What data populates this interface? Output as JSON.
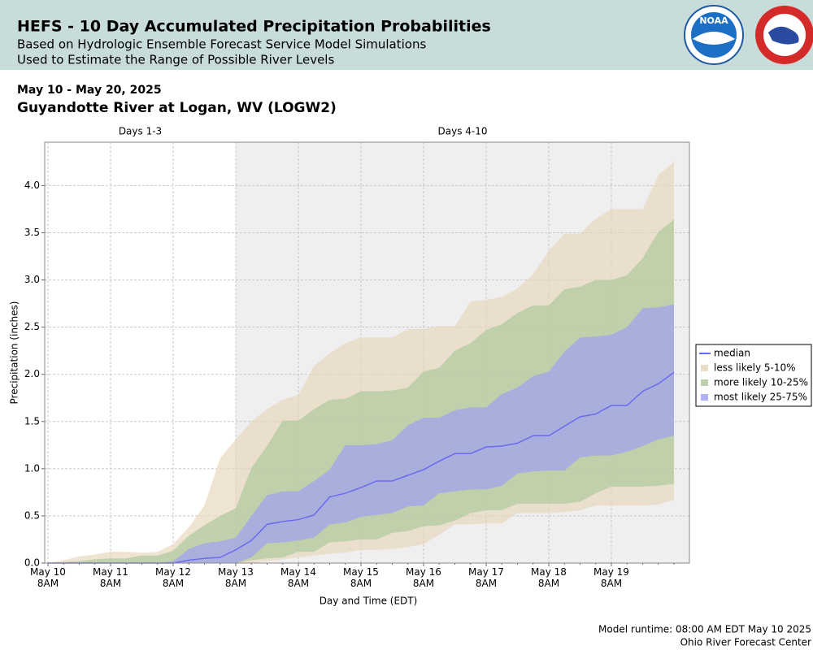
{
  "header": {
    "title": "HEFS - 10 Day Accumulated Precipitation Probabilities",
    "subtitles": [
      "Based on Hydrologic Ensemble Forecast Service Model Simulations",
      "Used to Estimate the Range of Possible River Levels"
    ],
    "logo_text": "NOAA"
  },
  "chart_data": {
    "type": "area",
    "title": "May 10 - May 20, 2025",
    "subtitle": "Guyandotte River at Logan, WV (LOGW2)",
    "x_label": "Day and Time (EDT)",
    "y_label": "Precipitation (inches)",
    "annotations": [
      "Days 1-3",
      "Days 4-10"
    ],
    "categories": [
      "May 10\n8AM",
      null,
      null,
      null,
      "May 11\n8AM",
      null,
      null,
      null,
      "May 12\n8AM",
      null,
      null,
      null,
      "May 13\n8AM",
      null,
      null,
      null,
      "May 14\n8AM",
      null,
      null,
      null,
      "May 15\n8AM",
      null,
      null,
      null,
      "May 16\n8AM",
      null,
      null,
      null,
      "May 17\n8AM",
      null,
      null,
      null,
      "May 18\n8AM",
      null,
      null,
      null,
      "May 19\n8AM",
      null,
      null,
      null,
      null
    ],
    "ylim": [
      0,
      4.46
    ],
    "yticks": [
      {
        "value": 0,
        "label": "0.0"
      },
      0.5,
      {
        "value": 1,
        "label": "1.0"
      },
      1.5,
      {
        "value": 2,
        "label": "2.0"
      },
      2.5,
      {
        "value": 3,
        "label": "3.0"
      },
      3.5,
      {
        "value": 4,
        "label": "4.0"
      }
    ],
    "grid": true,
    "legend": "right",
    "series": [
      {
        "name": "median",
        "color": "#6a6aee",
        "values": [
          0,
          0,
          0,
          0,
          0,
          0,
          0,
          0,
          0,
          0.03,
          0.05,
          0.06,
          0.14,
          0.24,
          0.41,
          0.44,
          0.46,
          0.51,
          0.7,
          0.74,
          0.8,
          0.87,
          0.87,
          0.93,
          0.99,
          1.08,
          1.16,
          1.16,
          1.23,
          1.24,
          1.27,
          1.35,
          1.35,
          1.45,
          1.55,
          1.58,
          1.67,
          1.67,
          1.82,
          1.9,
          2.02
        ]
      },
      {
        "name": "less likely 5-10%",
        "color": "#e6d4b8",
        "upper": [
          0,
          0.03,
          0.07,
          0.09,
          0.12,
          0.12,
          0.11,
          0.12,
          0.2,
          0.38,
          0.61,
          1.11,
          1.31,
          1.5,
          1.63,
          1.73,
          1.78,
          2.09,
          2.22,
          2.33,
          2.39,
          2.39,
          2.39,
          2.48,
          2.48,
          2.51,
          2.51,
          2.77,
          2.79,
          2.82,
          2.91,
          3.06,
          3.31,
          3.49,
          3.49,
          3.65,
          3.75,
          3.75,
          3.75,
          4.11,
          4.25
        ],
        "lower": [
          0,
          0,
          0,
          0,
          0,
          0,
          0,
          0,
          0,
          0,
          0,
          0,
          0,
          0,
          0.02,
          0.04,
          0.06,
          0.08,
          0.1,
          0.11,
          0.14,
          0.14,
          0.15,
          0.17,
          0.2,
          0.3,
          0.41,
          0.41,
          0.42,
          0.42,
          0.53,
          0.53,
          0.53,
          0.54,
          0.56,
          0.61,
          0.61,
          0.61,
          0.61,
          0.62,
          0.67
        ]
      },
      {
        "name": "more likely 10-25%",
        "color": "#a9c79a",
        "upper": [
          0,
          0.01,
          0.02,
          0.04,
          0.05,
          0.05,
          0.08,
          0.08,
          0.13,
          0.29,
          0.4,
          0.5,
          0.58,
          1.01,
          1.24,
          1.51,
          1.51,
          1.63,
          1.73,
          1.74,
          1.82,
          1.82,
          1.83,
          1.86,
          2.03,
          2.07,
          2.25,
          2.33,
          2.47,
          2.53,
          2.65,
          2.73,
          2.73,
          2.9,
          2.93,
          3.0,
          3.0,
          3.05,
          3.23,
          3.51,
          3.64
        ],
        "lower": [
          0,
          0,
          0,
          0,
          0,
          0,
          0,
          0,
          0,
          0,
          0,
          0,
          0,
          0.03,
          0.05,
          0.06,
          0.12,
          0.12,
          0.22,
          0.23,
          0.25,
          0.25,
          0.32,
          0.34,
          0.39,
          0.4,
          0.45,
          0.53,
          0.56,
          0.56,
          0.63,
          0.63,
          0.63,
          0.63,
          0.65,
          0.74,
          0.81,
          0.81,
          0.81,
          0.82,
          0.84
        ]
      },
      {
        "name": "most likely 25-75%",
        "color": "#9c9cf8",
        "upper": [
          0,
          0,
          0,
          0,
          0,
          0,
          0,
          0,
          0.02,
          0.15,
          0.21,
          0.23,
          0.27,
          0.5,
          0.72,
          0.76,
          0.76,
          0.87,
          0.99,
          1.25,
          1.25,
          1.26,
          1.3,
          1.46,
          1.54,
          1.54,
          1.62,
          1.65,
          1.65,
          1.79,
          1.86,
          1.98,
          2.03,
          2.24,
          2.39,
          2.4,
          2.42,
          2.5,
          2.7,
          2.71,
          2.74
        ],
        "lower": [
          0,
          0,
          0,
          0,
          0,
          0,
          0,
          0,
          0,
          0,
          0,
          0,
          0,
          0.06,
          0.21,
          0.22,
          0.24,
          0.27,
          0.41,
          0.43,
          0.49,
          0.51,
          0.53,
          0.6,
          0.61,
          0.74,
          0.76,
          0.78,
          0.78,
          0.82,
          0.95,
          0.97,
          0.98,
          0.98,
          1.12,
          1.14,
          1.14,
          1.18,
          1.24,
          1.31,
          1.35
        ]
      }
    ]
  },
  "footer": [
    "Model runtime: 08:00 AM EDT May 10 2025",
    "Ohio River Forecast Center"
  ]
}
